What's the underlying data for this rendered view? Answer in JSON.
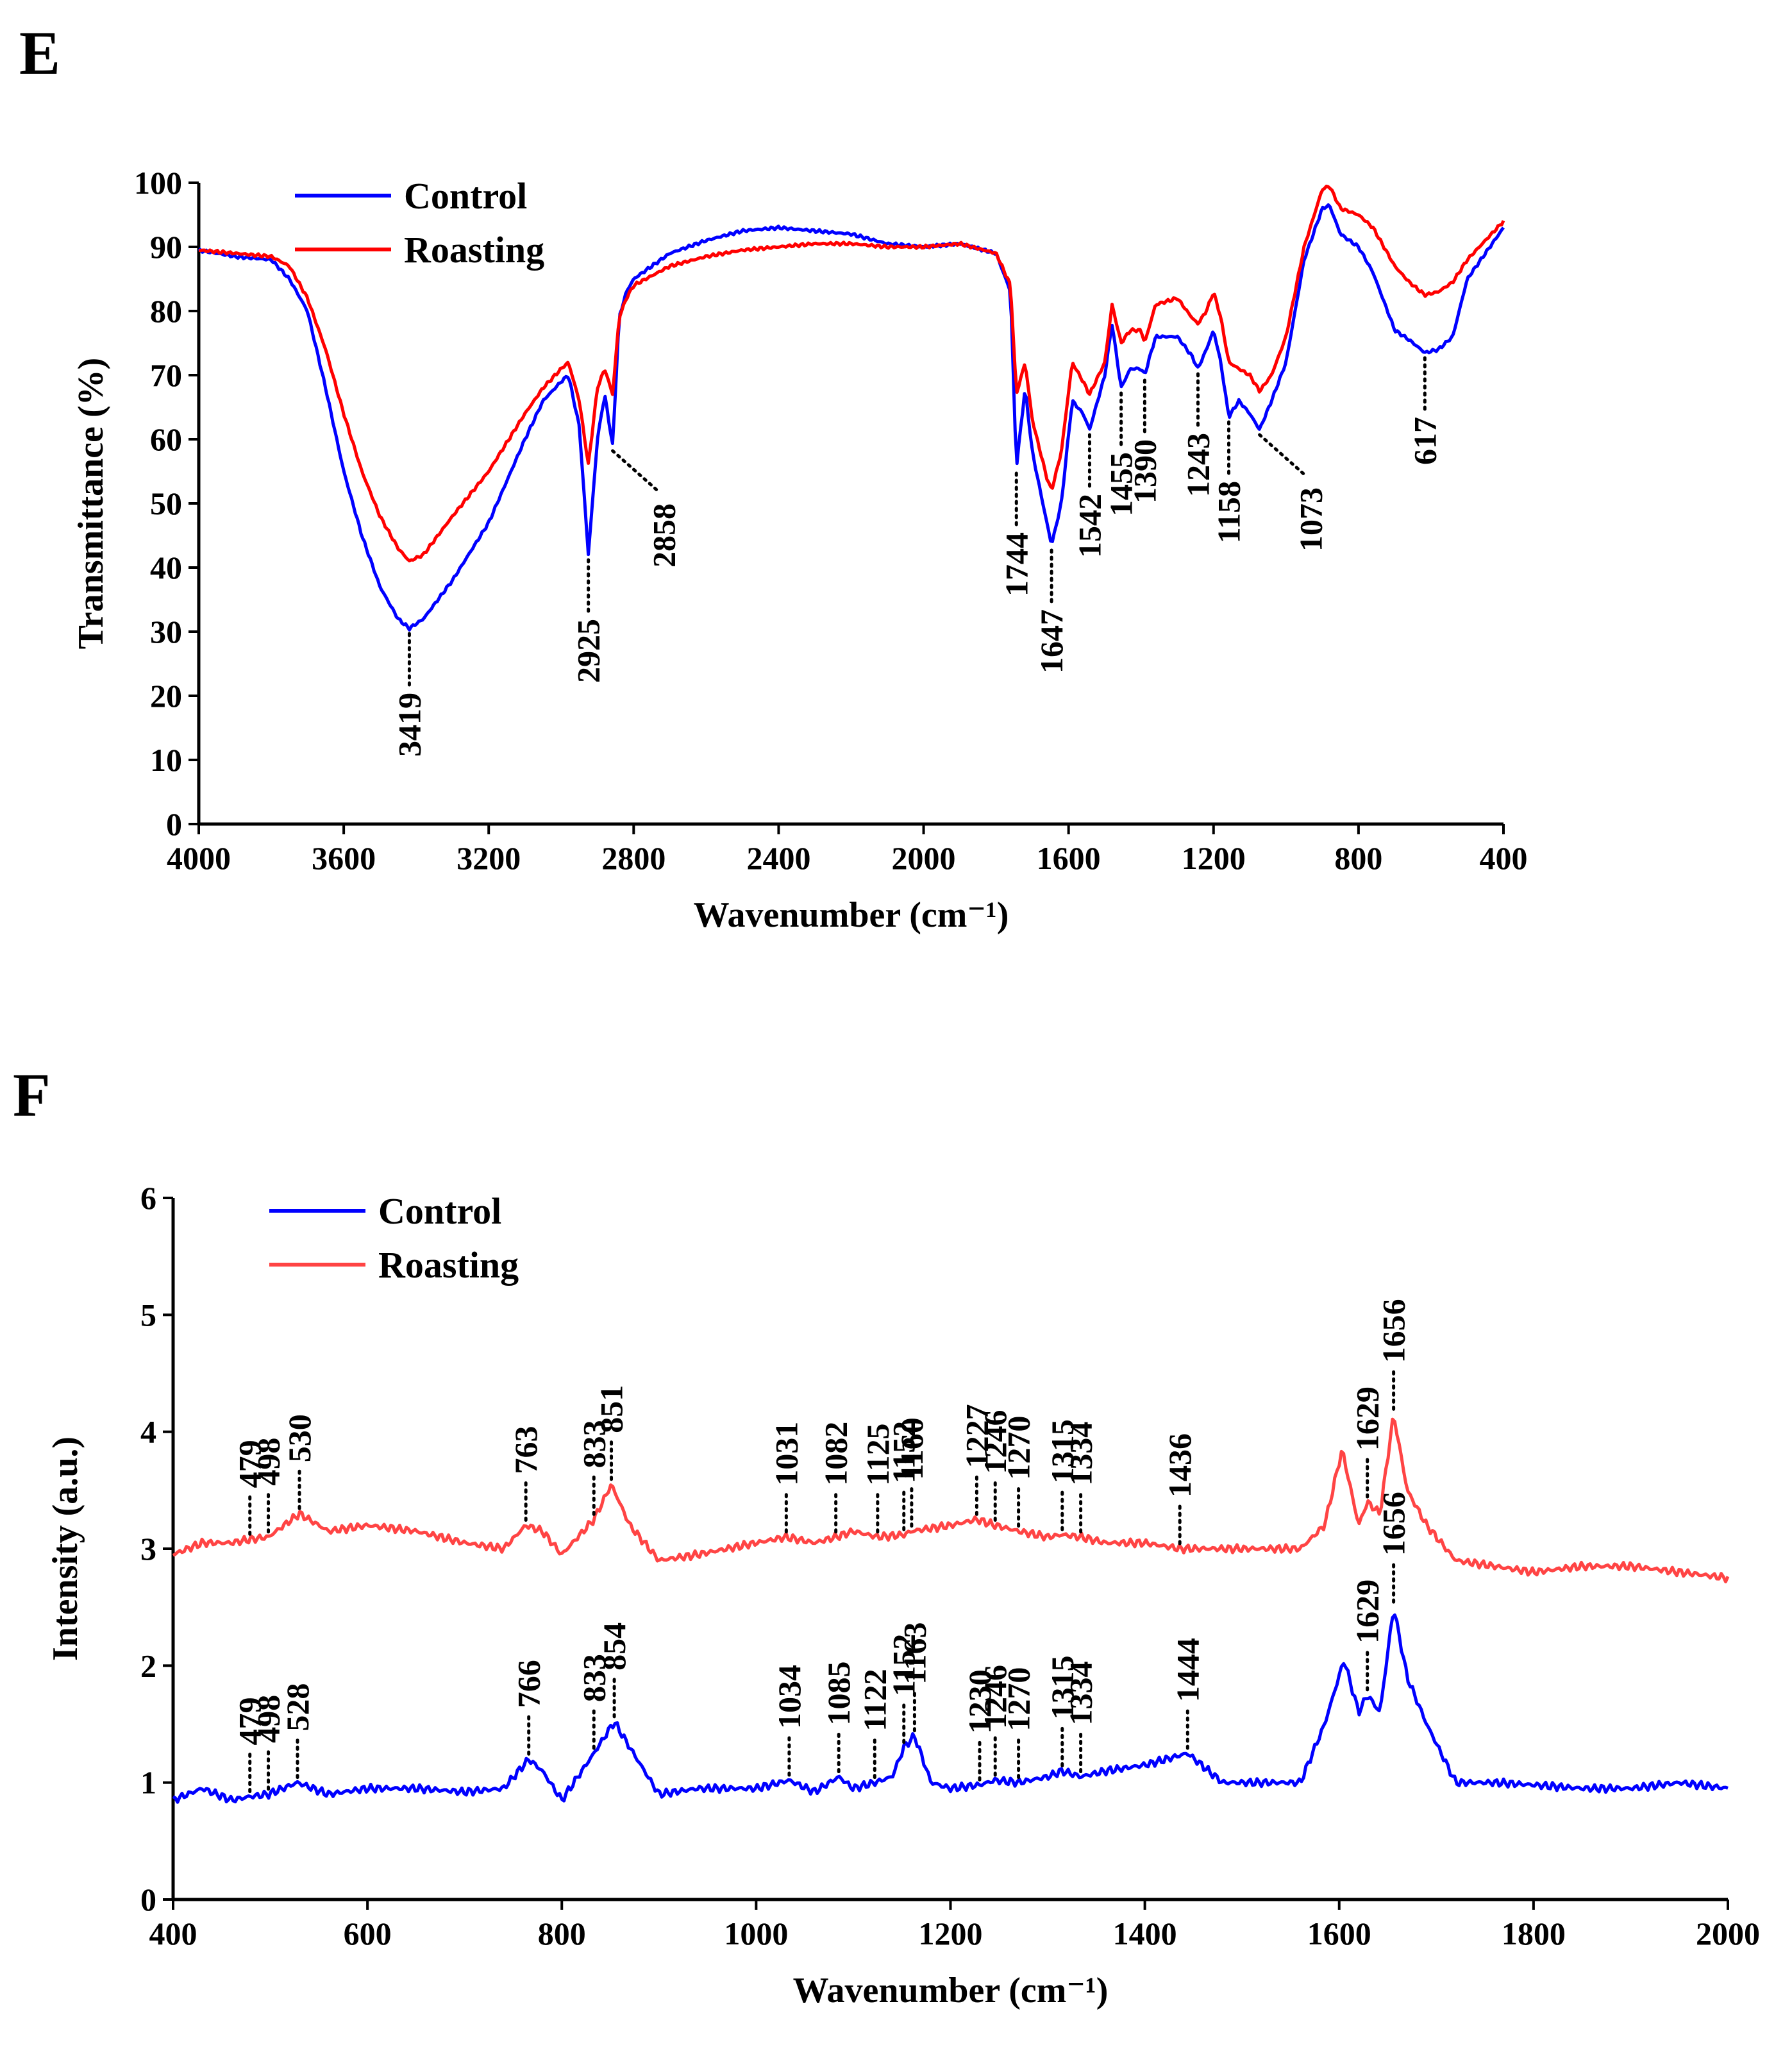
{
  "chart_data": [
    {
      "panel": "E",
      "type": "line",
      "xlabel": "Wavenumber (cm⁻¹)",
      "ylabel": "Transmittance (%)",
      "xlim": [
        4000,
        400
      ],
      "ylim": [
        0,
        100
      ],
      "x_ticks": [
        4000,
        3600,
        3200,
        2800,
        2400,
        2000,
        1600,
        1200,
        800,
        400
      ],
      "y_ticks": [
        0,
        10,
        20,
        30,
        40,
        50,
        60,
        70,
        80,
        90,
        100
      ],
      "legend": [
        "Control",
        "Roasting"
      ],
      "colors": {
        "Control": "#0000ff",
        "Roasting": "#ff0000"
      },
      "series": [
        {
          "name": "Control",
          "x": [
            4000,
            3900,
            3800,
            3750,
            3700,
            3650,
            3600,
            3550,
            3500,
            3450,
            3419,
            3380,
            3300,
            3200,
            3100,
            3050,
            3000,
            2980,
            2950,
            2925,
            2900,
            2880,
            2858,
            2840,
            2820,
            2800,
            2700,
            2600,
            2500,
            2400,
            2300,
            2200,
            2100,
            2000,
            1900,
            1800,
            1760,
            1744,
            1720,
            1700,
            1660,
            1647,
            1620,
            1590,
            1560,
            1542,
            1500,
            1480,
            1455,
            1430,
            1400,
            1390,
            1360,
            1300,
            1260,
            1243,
            1220,
            1200,
            1180,
            1158,
            1130,
            1100,
            1073,
            1040,
            1000,
            950,
            900,
            880,
            850,
            800,
            760,
            700,
            660,
            617,
            580,
            540,
            500,
            450,
            400
          ],
          "y": [
            89.5,
            88.5,
            88,
            85,
            80,
            68,
            55,
            45,
            37,
            32,
            30.5,
            32,
            38,
            47,
            60,
            66,
            69,
            70,
            62,
            42,
            60,
            67,
            59,
            79,
            83,
            85,
            89,
            91,
            92.5,
            93,
            92.5,
            92,
            90.5,
            90,
            90.5,
            89,
            83,
            55.5,
            68,
            58,
            47,
            43.5,
            50,
            66,
            64,
            61.5,
            70,
            78,
            68,
            71,
            71,
            70,
            76,
            76,
            73,
            71,
            74,
            77,
            72,
            63.5,
            66,
            64,
            61.5,
            66,
            72,
            88,
            96,
            96.5,
            92,
            90,
            86,
            77,
            75.5,
            73.5,
            74,
            76,
            85,
            89,
            93
          ]
        },
        {
          "name": "Roasting",
          "x": [
            4000,
            3900,
            3800,
            3750,
            3700,
            3650,
            3600,
            3550,
            3500,
            3450,
            3419,
            3380,
            3300,
            3200,
            3100,
            3050,
            3000,
            2980,
            2950,
            2925,
            2900,
            2880,
            2858,
            2840,
            2820,
            2800,
            2700,
            2600,
            2500,
            2400,
            2300,
            2200,
            2100,
            2000,
            1900,
            1800,
            1760,
            1744,
            1720,
            1700,
            1660,
            1647,
            1620,
            1590,
            1560,
            1542,
            1500,
            1480,
            1455,
            1430,
            1400,
            1390,
            1360,
            1300,
            1260,
            1243,
            1220,
            1200,
            1180,
            1158,
            1130,
            1100,
            1073,
            1040,
            1000,
            950,
            900,
            880,
            850,
            800,
            760,
            700,
            660,
            617,
            580,
            540,
            500,
            450,
            400
          ],
          "y": [
            89.5,
            89,
            88.5,
            87,
            82,
            74,
            64,
            55,
            48,
            43,
            41,
            42,
            48,
            55,
            64,
            68,
            71,
            72,
            66,
            56,
            68,
            71,
            67,
            79,
            82,
            84,
            87,
            88.5,
            89.5,
            90,
            90.5,
            90.5,
            90,
            90,
            90.5,
            89,
            84,
            67,
            72,
            63,
            54,
            52,
            58,
            72,
            69,
            67,
            72,
            81,
            75,
            77,
            77,
            75,
            81,
            82,
            79,
            78,
            80,
            83,
            79,
            72,
            71,
            70,
            67.5,
            70,
            76,
            90,
            99,
            99.5,
            96,
            95,
            93,
            87,
            84.5,
            82.5,
            83,
            84.5,
            88,
            91,
            94
          ]
        }
      ],
      "annotations": [
        {
          "label": "3419",
          "series": "Control",
          "x": 3419,
          "y": 30.5,
          "dir": "down"
        },
        {
          "label": "2925",
          "series": "Control",
          "x": 2925,
          "y": 42,
          "dir": "down"
        },
        {
          "label": "2858",
          "series": "Control",
          "x": 2858,
          "y": 59,
          "dir": "downright"
        },
        {
          "label": "1744",
          "series": "Control",
          "x": 1744,
          "y": 55.5,
          "dir": "down"
        },
        {
          "label": "1647",
          "series": "Control",
          "x": 1647,
          "y": 43.5,
          "dir": "down"
        },
        {
          "label": "1542",
          "series": "Control",
          "x": 1542,
          "y": 61.5,
          "dir": "down"
        },
        {
          "label": "1455",
          "series": "Control",
          "x": 1455,
          "y": 68,
          "dir": "down"
        },
        {
          "label": "1390",
          "series": "Control",
          "x": 1390,
          "y": 70,
          "dir": "down"
        },
        {
          "label": "1243",
          "series": "Control",
          "x": 1243,
          "y": 71,
          "dir": "down"
        },
        {
          "label": "1158",
          "series": "Control",
          "x": 1158,
          "y": 63.5,
          "dir": "down"
        },
        {
          "label": "1073",
          "series": "Control",
          "x": 1073,
          "y": 61.5,
          "dir": "downright"
        },
        {
          "label": "617",
          "series": "Control",
          "x": 617,
          "y": 73.5,
          "dir": "down"
        }
      ]
    },
    {
      "panel": "F",
      "type": "line",
      "xlabel": "Wavenumber (cm⁻¹)",
      "ylabel": "Intensity (a.u.)",
      "xlim": [
        400,
        2000
      ],
      "ylim": [
        0,
        6
      ],
      "x_ticks": [
        400,
        600,
        800,
        1000,
        1200,
        1400,
        1600,
        1800,
        2000
      ],
      "y_ticks": [
        0,
        1,
        2,
        3,
        4,
        5,
        6
      ],
      "legend": [
        "Control",
        "Roasting"
      ],
      "colors": {
        "Control": "#0000ff",
        "Roasting": "#ff4444"
      },
      "series": [
        {
          "name": "Control",
          "x": [
            400,
            430,
            460,
            479,
            498,
            528,
            560,
            600,
            650,
            700,
            740,
            766,
            780,
            800,
            833,
            854,
            870,
            900,
            940,
            1000,
            1034,
            1060,
            1085,
            1100,
            1122,
            1140,
            1152,
            1163,
            1180,
            1200,
            1230,
            1246,
            1270,
            1300,
            1315,
            1334,
            1360,
            1400,
            1444,
            1480,
            1520,
            1560,
            1585,
            1605,
            1620,
            1629,
            1642,
            1656,
            1670,
            1690,
            1720,
            1760,
            1800,
            1850,
            1900,
            1950,
            2000
          ],
          "y": [
            0.85,
            0.95,
            0.85,
            0.88,
            0.9,
            1.0,
            0.9,
            0.95,
            0.95,
            0.92,
            0.95,
            1.2,
            1.1,
            0.85,
            1.25,
            1.52,
            1.3,
            0.9,
            0.95,
            0.95,
            1.02,
            0.92,
            1.05,
            0.95,
            1.0,
            1.05,
            1.3,
            1.4,
            1.0,
            0.95,
            0.98,
            1.02,
            1.0,
            1.05,
            1.1,
            1.05,
            1.1,
            1.15,
            1.25,
            1.0,
            1.0,
            1.0,
            1.5,
            2.05,
            1.6,
            1.75,
            1.6,
            2.5,
            1.9,
            1.5,
            1.0,
            1.0,
            0.98,
            0.95,
            0.95,
            1.0,
            0.95
          ]
        },
        {
          "name": "Roasting",
          "x": [
            400,
            430,
            460,
            479,
            498,
            530,
            560,
            600,
            650,
            700,
            740,
            763,
            780,
            800,
            833,
            851,
            870,
            900,
            940,
            1000,
            1031,
            1060,
            1082,
            1100,
            1125,
            1152,
            1160,
            1200,
            1227,
            1246,
            1270,
            1300,
            1315,
            1334,
            1360,
            1400,
            1436,
            1480,
            1520,
            1560,
            1585,
            1603,
            1620,
            1629,
            1642,
            1656,
            1670,
            1690,
            1720,
            1760,
            1800,
            1850,
            1900,
            1950,
            2000
          ],
          "y": [
            2.95,
            3.05,
            3.05,
            3.08,
            3.1,
            3.3,
            3.15,
            3.2,
            3.15,
            3.05,
            3.0,
            3.2,
            3.15,
            2.95,
            3.25,
            3.55,
            3.2,
            2.9,
            2.95,
            3.05,
            3.1,
            3.05,
            3.1,
            3.15,
            3.1,
            3.12,
            3.15,
            3.2,
            3.25,
            3.2,
            3.15,
            3.1,
            3.12,
            3.1,
            3.05,
            3.05,
            3.0,
            3.0,
            3.0,
            3.0,
            3.2,
            3.85,
            3.2,
            3.4,
            3.3,
            4.15,
            3.5,
            3.2,
            2.9,
            2.85,
            2.8,
            2.85,
            2.85,
            2.8,
            2.75
          ]
        }
      ],
      "annotations_roasting": [
        {
          "label": "479",
          "x": 479,
          "y": 3.08
        },
        {
          "label": "498",
          "x": 498,
          "y": 3.1
        },
        {
          "label": "530",
          "x": 530,
          "y": 3.3
        },
        {
          "label": "763",
          "x": 763,
          "y": 3.2
        },
        {
          "label": "833",
          "x": 833,
          "y": 3.25
        },
        {
          "label": "851",
          "x": 851,
          "y": 3.55
        },
        {
          "label": "1031",
          "x": 1031,
          "y": 3.1
        },
        {
          "label": "1082",
          "x": 1082,
          "y": 3.1
        },
        {
          "label": "1125",
          "x": 1125,
          "y": 3.1
        },
        {
          "label": "1152",
          "x": 1152,
          "y": 3.12
        },
        {
          "label": "1160",
          "x": 1160,
          "y": 3.15
        },
        {
          "label": "1227",
          "x": 1227,
          "y": 3.25
        },
        {
          "label": "1246",
          "x": 1246,
          "y": 3.2
        },
        {
          "label": "1270",
          "x": 1270,
          "y": 3.15
        },
        {
          "label": "1315",
          "x": 1315,
          "y": 3.12
        },
        {
          "label": "1334",
          "x": 1334,
          "y": 3.1
        },
        {
          "label": "1436",
          "x": 1436,
          "y": 3.0
        },
        {
          "label": "1629",
          "x": 1629,
          "y": 3.4
        },
        {
          "label": "1656",
          "x": 1656,
          "y": 4.15
        }
      ],
      "annotations_control": [
        {
          "label": "479",
          "x": 479,
          "y": 0.88
        },
        {
          "label": "498",
          "x": 498,
          "y": 0.9
        },
        {
          "label": "528",
          "x": 528,
          "y": 1.0
        },
        {
          "label": "766",
          "x": 766,
          "y": 1.2
        },
        {
          "label": "833",
          "x": 833,
          "y": 1.25
        },
        {
          "label": "854",
          "x": 854,
          "y": 1.52
        },
        {
          "label": "1034",
          "x": 1034,
          "y": 1.02
        },
        {
          "label": "1085",
          "x": 1085,
          "y": 1.05
        },
        {
          "label": "1122",
          "x": 1122,
          "y": 1.0
        },
        {
          "label": "1152",
          "x": 1152,
          "y": 1.3
        },
        {
          "label": "1163",
          "x": 1163,
          "y": 1.4
        },
        {
          "label": "1230",
          "x": 1230,
          "y": 0.98
        },
        {
          "label": "1246",
          "x": 1246,
          "y": 1.02
        },
        {
          "label": "1270",
          "x": 1270,
          "y": 1.0
        },
        {
          "label": "1315",
          "x": 1315,
          "y": 1.1
        },
        {
          "label": "1334",
          "x": 1334,
          "y": 1.05
        },
        {
          "label": "1444",
          "x": 1444,
          "y": 1.25
        },
        {
          "label": "1629",
          "x": 1629,
          "y": 1.75
        },
        {
          "label": "1656",
          "x": 1656,
          "y": 2.5
        }
      ]
    }
  ]
}
